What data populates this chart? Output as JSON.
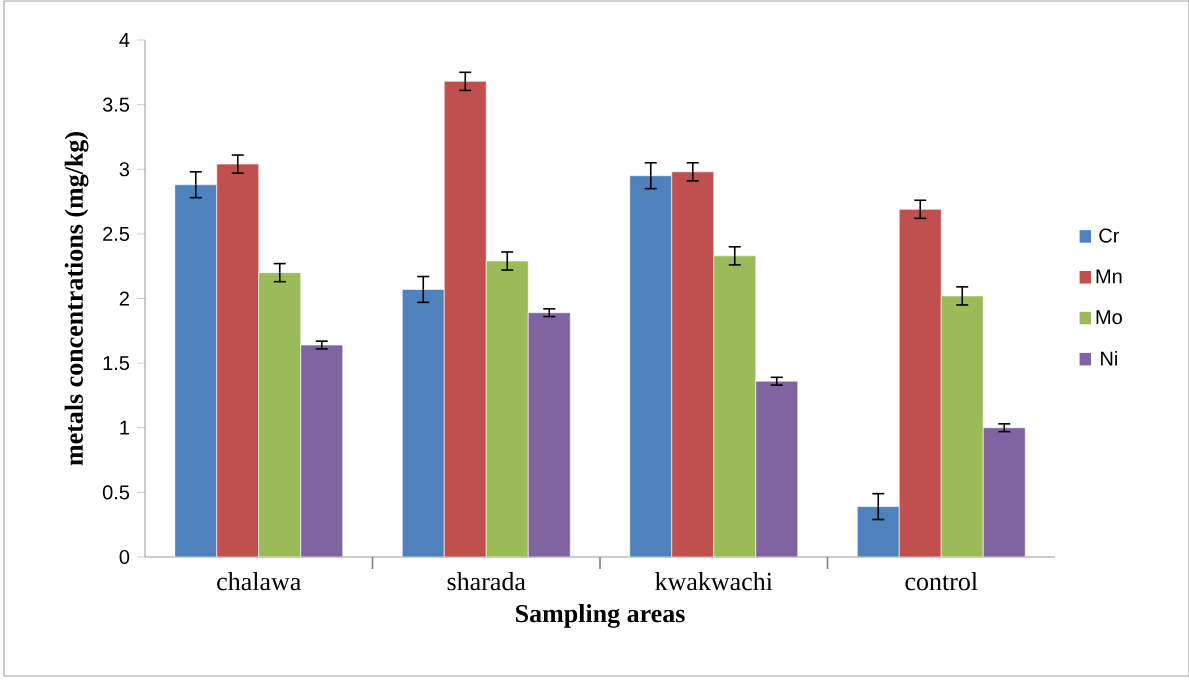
{
  "chart_data": {
    "type": "bar",
    "xlabel": "Sampling areas",
    "ylabel": "metals  concentrations (mg/kg)",
    "categories": [
      "chalawa",
      "sharada",
      "kwakwachi",
      "control"
    ],
    "series": [
      {
        "name": "Cr",
        "color": "#4f81bd",
        "values": [
          2.88,
          2.07,
          2.95,
          0.39
        ],
        "errors": [
          0.1,
          0.1,
          0.1,
          0.1
        ]
      },
      {
        "name": "Mn",
        "color": "#c0504d",
        "values": [
          3.04,
          3.68,
          2.98,
          2.69
        ],
        "errors": [
          0.07,
          0.07,
          0.07,
          0.07
        ]
      },
      {
        "name": "Mo",
        "color": "#9bbb59",
        "values": [
          2.2,
          2.29,
          2.33,
          2.02
        ],
        "errors": [
          0.07,
          0.07,
          0.07,
          0.07
        ]
      },
      {
        "name": "Ni",
        "color": "#8064a2",
        "values": [
          1.64,
          1.89,
          1.36,
          1.0
        ],
        "errors": [
          0.03,
          0.03,
          0.03,
          0.03
        ]
      }
    ],
    "ylim": [
      0,
      4
    ],
    "yticks": [
      0,
      0.5,
      1,
      1.5,
      2,
      2.5,
      3,
      3.5,
      4
    ],
    "legend": "right"
  }
}
